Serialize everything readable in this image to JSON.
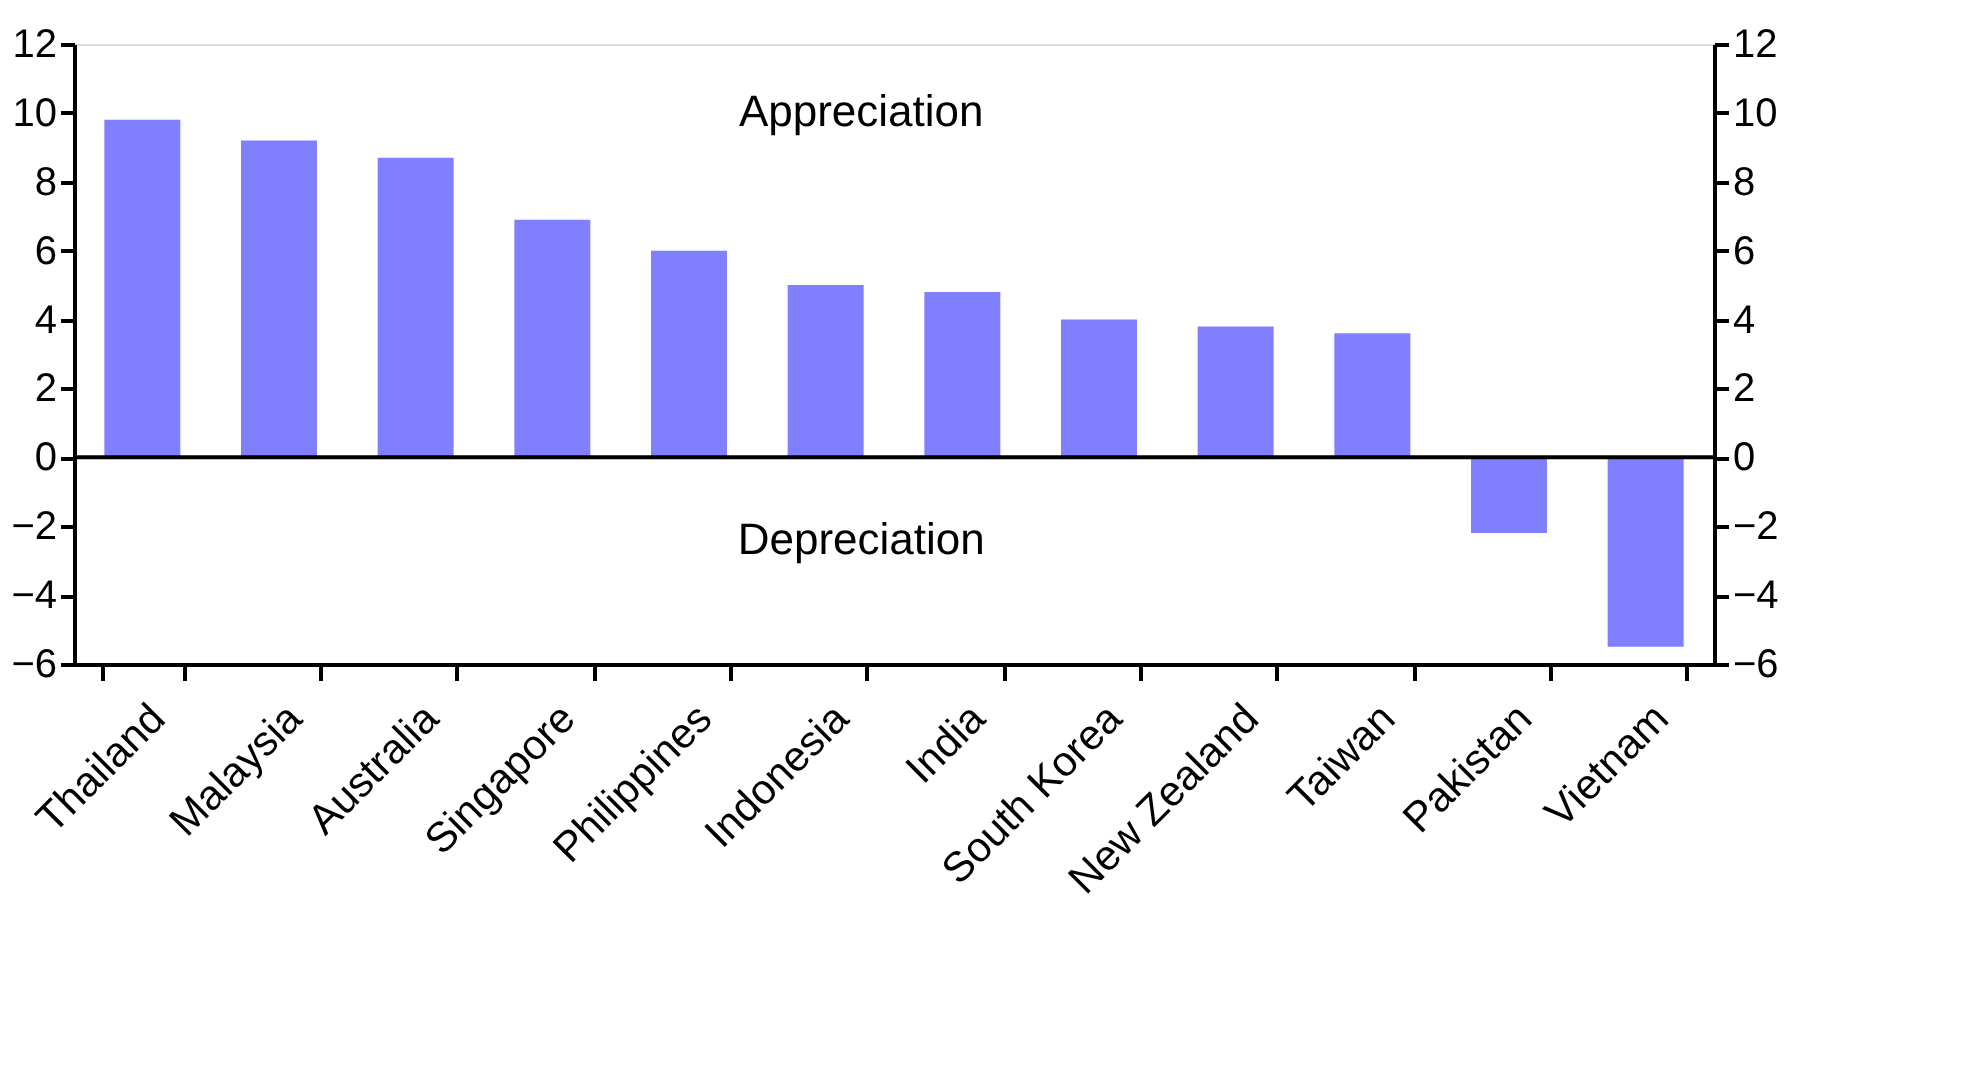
{
  "chart_data": {
    "type": "bar",
    "categories": [
      "Thailand",
      "Malaysia",
      "Australia",
      "Singapore",
      "Philippines",
      "Indonesia",
      "India",
      "South Korea",
      "New Zealand",
      "Taiwan",
      "Pakistan",
      "Vietnam"
    ],
    "values": [
      9.8,
      9.2,
      8.7,
      6.9,
      6.0,
      5.0,
      4.8,
      4.0,
      3.8,
      3.6,
      -2.2,
      -5.5
    ],
    "color": "#8080ff",
    "ylim": [
      -6,
      12
    ],
    "yticks": [
      -6,
      -4,
      -2,
      0,
      2,
      4,
      6,
      8,
      10,
      12
    ],
    "y2lim": [
      -6,
      12
    ],
    "y2ticks": [
      -6,
      -4,
      -2,
      0,
      2,
      4,
      6,
      8,
      10,
      12
    ],
    "ref_lines": [
      {
        "axis": "y",
        "value": 0,
        "color": "#000000"
      }
    ],
    "annotations": [
      "Appreciation",
      "Depreciation"
    ],
    "grid": false
  }
}
